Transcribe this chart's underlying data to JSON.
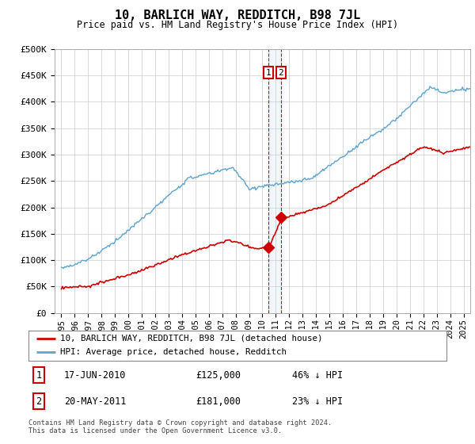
{
  "title": "10, BARLICH WAY, REDDITCH, B98 7JL",
  "subtitle": "Price paid vs. HM Land Registry's House Price Index (HPI)",
  "ylabel_ticks": [
    "£0",
    "£50K",
    "£100K",
    "£150K",
    "£200K",
    "£250K",
    "£300K",
    "£350K",
    "£400K",
    "£450K",
    "£500K"
  ],
  "ytick_values": [
    0,
    50000,
    100000,
    150000,
    200000,
    250000,
    300000,
    350000,
    400000,
    450000,
    500000
  ],
  "xlim_start": 1994.5,
  "xlim_end": 2025.5,
  "ylim": [
    0,
    500000
  ],
  "hpi_color": "#5ba3d0",
  "price_color": "#cc0000",
  "sale1_date": 2010.46,
  "sale1_price": 125000,
  "sale2_date": 2011.38,
  "sale2_price": 181000,
  "legend_property": "10, BARLICH WAY, REDDITCH, B98 7JL (detached house)",
  "legend_hpi": "HPI: Average price, detached house, Redditch",
  "footnote": "Contains HM Land Registry data © Crown copyright and database right 2024.\nThis data is licensed under the Open Government Licence v3.0.",
  "background_color": "#ffffff",
  "grid_color": "#cccccc"
}
